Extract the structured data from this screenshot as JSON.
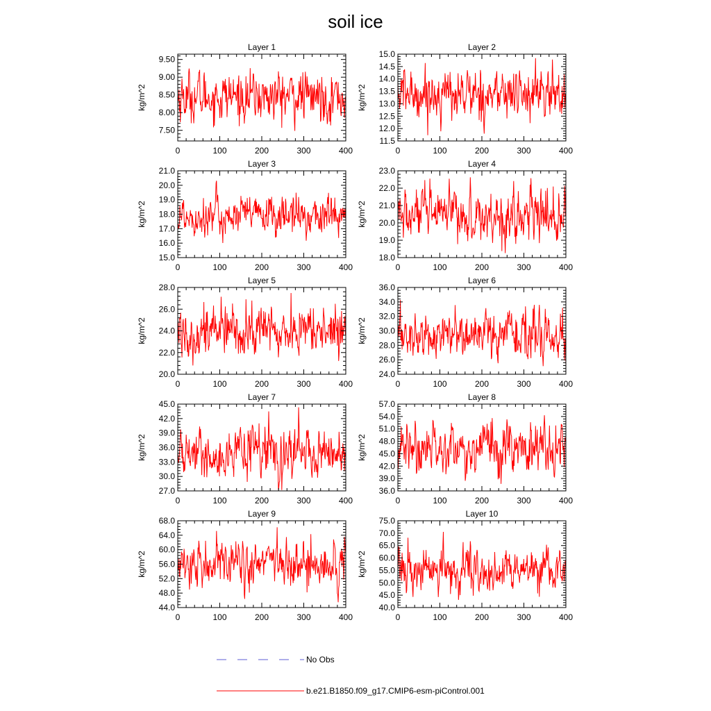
{
  "title": "soil ice",
  "legend": {
    "obs_label": "No Obs",
    "obs_color": "#5b5bd6",
    "model_label": "b.e21.B1850.f09_g17.CMIP6-esm-piControl.001",
    "model_color": "#ff0000"
  },
  "chart_data": [
    {
      "type": "line",
      "title": "Layer 1",
      "xlabel": "",
      "ylabel": "kg/m^2",
      "xlim": [
        0,
        400
      ],
      "ylim": [
        7.2,
        9.65
      ],
      "x_ticks": [
        0,
        100,
        200,
        300,
        400
      ],
      "x_tick_labels": [
        "0",
        "100",
        "200",
        "300",
        "400"
      ],
      "y_ticks": [
        7.5,
        8.0,
        8.5,
        9.0,
        9.5
      ],
      "y_tick_labels": [
        "7.50",
        "8.00",
        "8.50",
        "9.00",
        "9.50"
      ],
      "series": [
        {
          "color": "#ff0000",
          "count": 400,
          "mean": 8.45,
          "amp": 0.35,
          "values": []
        }
      ]
    },
    {
      "type": "line",
      "title": "Layer 2",
      "xlabel": "",
      "ylabel": "kg/m^2",
      "xlim": [
        0,
        400
      ],
      "ylim": [
        11.5,
        15.0
      ],
      "x_ticks": [
        0,
        100,
        200,
        300,
        400
      ],
      "x_tick_labels": [
        "0",
        "100",
        "200",
        "300",
        "400"
      ],
      "y_ticks": [
        11.5,
        12.0,
        12.5,
        13.0,
        13.5,
        14.0,
        14.5,
        15.0
      ],
      "y_tick_labels": [
        "11.5",
        "12.0",
        "12.5",
        "13.0",
        "13.5",
        "14.0",
        "14.5",
        "15.0"
      ],
      "series": [
        {
          "color": "#ff0000",
          "count": 400,
          "mean": 13.4,
          "amp": 0.5,
          "values": []
        }
      ]
    },
    {
      "type": "line",
      "title": "Layer 3",
      "xlabel": "",
      "ylabel": "kg/m^2",
      "xlim": [
        0,
        400
      ],
      "ylim": [
        15.0,
        21.0
      ],
      "x_ticks": [
        0,
        100,
        200,
        300,
        400
      ],
      "x_tick_labels": [
        "0",
        "100",
        "200",
        "300",
        "400"
      ],
      "y_ticks": [
        15,
        16,
        17,
        18,
        19,
        20,
        21
      ],
      "y_tick_labels": [
        "15.0",
        "16.0",
        "17.0",
        "18.0",
        "19.0",
        "20.0",
        "21.0"
      ],
      "series": [
        {
          "color": "#ff0000",
          "count": 400,
          "mean": 17.9,
          "amp": 0.7,
          "values": []
        }
      ]
    },
    {
      "type": "line",
      "title": "Layer 4",
      "xlabel": "",
      "ylabel": "kg/m^2",
      "xlim": [
        0,
        400
      ],
      "ylim": [
        18.0,
        23.0
      ],
      "x_ticks": [
        0,
        100,
        200,
        300,
        400
      ],
      "x_tick_labels": [
        "0",
        "100",
        "200",
        "300",
        "400"
      ],
      "y_ticks": [
        18,
        19,
        20,
        21,
        22,
        23
      ],
      "y_tick_labels": [
        "18.0",
        "19.0",
        "20.0",
        "21.0",
        "22.0",
        "23.0"
      ],
      "series": [
        {
          "color": "#ff0000",
          "count": 400,
          "mean": 20.4,
          "amp": 0.75,
          "values": []
        }
      ]
    },
    {
      "type": "line",
      "title": "Layer 5",
      "xlabel": "",
      "ylabel": "kg/m^2",
      "xlim": [
        0,
        400
      ],
      "ylim": [
        20.0,
        28.0
      ],
      "x_ticks": [
        0,
        100,
        200,
        300,
        400
      ],
      "x_tick_labels": [
        "0",
        "100",
        "200",
        "300",
        "400"
      ],
      "y_ticks": [
        20,
        22,
        24,
        26,
        28
      ],
      "y_tick_labels": [
        "20.0",
        "22.0",
        "24.0",
        "26.0",
        "28.0"
      ],
      "series": [
        {
          "color": "#ff0000",
          "count": 400,
          "mean": 24.0,
          "amp": 1.2,
          "values": []
        }
      ]
    },
    {
      "type": "line",
      "title": "Layer 6",
      "xlabel": "",
      "ylabel": "kg/m^2",
      "xlim": [
        0,
        400
      ],
      "ylim": [
        24.0,
        36.0
      ],
      "x_ticks": [
        0,
        100,
        200,
        300,
        400
      ],
      "x_tick_labels": [
        "0",
        "100",
        "200",
        "300",
        "400"
      ],
      "y_ticks": [
        24,
        26,
        28,
        30,
        32,
        34,
        36
      ],
      "y_tick_labels": [
        "24.0",
        "26.0",
        "28.0",
        "30.0",
        "32.0",
        "34.0",
        "36.0"
      ],
      "series": [
        {
          "color": "#ff0000",
          "count": 400,
          "mean": 29.3,
          "amp": 1.6,
          "values": []
        }
      ]
    },
    {
      "type": "line",
      "title": "Layer 7",
      "xlabel": "",
      "ylabel": "kg/m^2",
      "xlim": [
        0,
        400
      ],
      "ylim": [
        27.0,
        45.0
      ],
      "x_ticks": [
        0,
        100,
        200,
        300,
        400
      ],
      "x_tick_labels": [
        "0",
        "100",
        "200",
        "300",
        "400"
      ],
      "y_ticks": [
        27,
        30,
        33,
        36,
        39,
        42,
        45
      ],
      "y_tick_labels": [
        "27.0",
        "30.0",
        "33.0",
        "36.0",
        "39.0",
        "42.0",
        "45.0"
      ],
      "series": [
        {
          "color": "#ff0000",
          "count": 400,
          "mean": 34.8,
          "amp": 2.4,
          "values": []
        }
      ]
    },
    {
      "type": "line",
      "title": "Layer 8",
      "xlabel": "",
      "ylabel": "kg/m^2",
      "xlim": [
        0,
        400
      ],
      "ylim": [
        36.0,
        57.0
      ],
      "x_ticks": [
        0,
        100,
        200,
        300,
        400
      ],
      "x_tick_labels": [
        "0",
        "100",
        "200",
        "300",
        "400"
      ],
      "y_ticks": [
        36,
        39,
        42,
        45,
        48,
        51,
        54,
        57
      ],
      "y_tick_labels": [
        "36.0",
        "39.0",
        "42.0",
        "45.0",
        "48.0",
        "51.0",
        "54.0",
        "57.0"
      ],
      "series": [
        {
          "color": "#ff0000",
          "count": 400,
          "mean": 46.5,
          "amp": 3.0,
          "values": []
        }
      ]
    },
    {
      "type": "line",
      "title": "Layer 9",
      "xlabel": "",
      "ylabel": "kg/m^2",
      "xlim": [
        0,
        400
      ],
      "ylim": [
        44.0,
        68.0
      ],
      "x_ticks": [
        0,
        100,
        200,
        300,
        400
      ],
      "x_tick_labels": [
        "0",
        "100",
        "200",
        "300",
        "400"
      ],
      "y_ticks": [
        44,
        48,
        52,
        56,
        60,
        64,
        68
      ],
      "y_tick_labels": [
        "44.0",
        "48.0",
        "52.0",
        "56.0",
        "60.0",
        "64.0",
        "68.0"
      ],
      "series": [
        {
          "color": "#ff0000",
          "count": 400,
          "mean": 56.0,
          "amp": 3.2,
          "values": []
        }
      ]
    },
    {
      "type": "line",
      "title": "Layer 10",
      "xlabel": "",
      "ylabel": "kg/m^2",
      "xlim": [
        0,
        400
      ],
      "ylim": [
        40.0,
        75.0
      ],
      "x_ticks": [
        0,
        100,
        200,
        300,
        400
      ],
      "x_tick_labels": [
        "0",
        "100",
        "200",
        "300",
        "400"
      ],
      "y_ticks": [
        40,
        45,
        50,
        55,
        60,
        65,
        70,
        75
      ],
      "y_tick_labels": [
        "40.0",
        "45.0",
        "50.0",
        "55.0",
        "60.0",
        "65.0",
        "70.0",
        "75.0"
      ],
      "series": [
        {
          "color": "#ff0000",
          "count": 400,
          "mean": 55.0,
          "amp": 4.2,
          "values": []
        }
      ]
    }
  ]
}
